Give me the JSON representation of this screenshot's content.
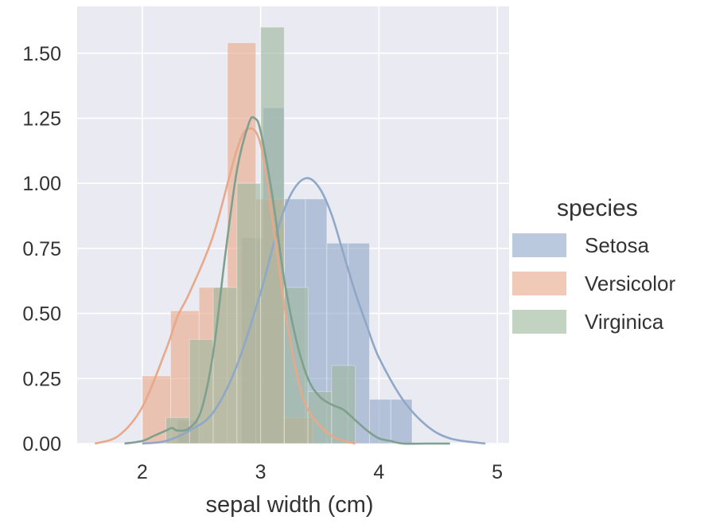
{
  "chart_data": {
    "type": "bar",
    "subtype": "histogram-with-kde",
    "xlabel": "sepal width (cm)",
    "ylabel": "",
    "xlim": [
      1.45,
      5.1
    ],
    "ylim": [
      0,
      1.68
    ],
    "x_ticks": [
      2,
      3,
      4,
      5
    ],
    "y_ticks": [
      0.0,
      0.25,
      0.5,
      0.75,
      1.0,
      1.25,
      1.5
    ],
    "x_tick_labels": [
      "2",
      "3",
      "4",
      "5"
    ],
    "y_tick_labels": [
      "0.00",
      "0.25",
      "0.50",
      "0.75",
      "1.00",
      "1.25",
      "1.50"
    ],
    "grid": true,
    "legend_position": "right",
    "legend_title": "species",
    "series": [
      {
        "name": "Setosa",
        "color": "#8fa8c8",
        "bins": [
          {
            "x0": 2.3,
            "x1": 2.48,
            "value": 0.09
          },
          {
            "x0": 2.66,
            "x1": 2.84,
            "value": 0.0
          },
          {
            "x0": 2.84,
            "x1": 3.02,
            "value": 0.79
          },
          {
            "x0": 3.02,
            "x1": 3.2,
            "value": 1.29
          },
          {
            "x0": 3.2,
            "x1": 3.38,
            "value": 0.94
          },
          {
            "x0": 3.38,
            "x1": 3.56,
            "value": 0.94
          },
          {
            "x0": 3.56,
            "x1": 3.74,
            "value": 0.77
          },
          {
            "x0": 3.74,
            "x1": 3.92,
            "value": 0.77
          },
          {
            "x0": 3.92,
            "x1": 4.1,
            "value": 0.17
          },
          {
            "x0": 4.1,
            "x1": 4.28,
            "value": 0.17
          }
        ],
        "kde": {
          "x": [
            2.0,
            2.2,
            2.4,
            2.6,
            2.8,
            3.0,
            3.1,
            3.2,
            3.3,
            3.4,
            3.5,
            3.6,
            3.7,
            3.8,
            3.9,
            4.0,
            4.2,
            4.4,
            4.6,
            4.9
          ],
          "y": [
            0.0,
            0.01,
            0.05,
            0.12,
            0.3,
            0.58,
            0.75,
            0.9,
            0.99,
            1.02,
            0.98,
            0.88,
            0.73,
            0.58,
            0.45,
            0.33,
            0.17,
            0.07,
            0.02,
            0.0
          ]
        }
      },
      {
        "name": "Versicolor",
        "color": "#e8a98a",
        "bins": [
          {
            "x0": 2.0,
            "x1": 2.24,
            "value": 0.26
          },
          {
            "x0": 2.24,
            "x1": 2.48,
            "value": 0.51
          },
          {
            "x0": 2.48,
            "x1": 2.72,
            "value": 0.6
          },
          {
            "x0": 2.72,
            "x1": 2.96,
            "value": 1.54
          },
          {
            "x0": 2.96,
            "x1": 3.2,
            "value": 0.94
          },
          {
            "x0": 3.2,
            "x1": 3.44,
            "value": 0.1
          }
        ],
        "kde": {
          "x": [
            1.6,
            1.8,
            2.0,
            2.2,
            2.3,
            2.4,
            2.6,
            2.8,
            2.9,
            3.0,
            3.1,
            3.2,
            3.3,
            3.4,
            3.6,
            3.8
          ],
          "y": [
            0.0,
            0.03,
            0.14,
            0.36,
            0.49,
            0.58,
            0.8,
            1.13,
            1.21,
            1.15,
            0.86,
            0.53,
            0.28,
            0.13,
            0.03,
            0.0
          ]
        }
      },
      {
        "name": "Virginica",
        "color": "#9cb89c",
        "bins": [
          {
            "x0": 2.2,
            "x1": 2.4,
            "value": 0.1
          },
          {
            "x0": 2.4,
            "x1": 2.6,
            "value": 0.4
          },
          {
            "x0": 2.6,
            "x1": 2.8,
            "value": 0.6
          },
          {
            "x0": 2.8,
            "x1": 3.0,
            "value": 1.0
          },
          {
            "x0": 3.0,
            "x1": 3.2,
            "value": 1.6
          },
          {
            "x0": 3.2,
            "x1": 3.4,
            "value": 0.6
          },
          {
            "x0": 3.4,
            "x1": 3.6,
            "value": 0.2
          },
          {
            "x0": 3.6,
            "x1": 3.8,
            "value": 0.3
          },
          {
            "x0": 3.8,
            "x1": 4.0,
            "value": 0.0
          }
        ],
        "kde": {
          "x": [
            1.85,
            2.0,
            2.1,
            2.2,
            2.25,
            2.3,
            2.4,
            2.5,
            2.6,
            2.7,
            2.8,
            2.9,
            2.95,
            3.0,
            3.1,
            3.2,
            3.3,
            3.4,
            3.5,
            3.6,
            3.7,
            3.8,
            3.9,
            4.0,
            4.1,
            4.2,
            4.4,
            4.6
          ],
          "y": [
            0.0,
            0.01,
            0.03,
            0.05,
            0.06,
            0.05,
            0.06,
            0.13,
            0.35,
            0.72,
            1.05,
            1.23,
            1.25,
            1.2,
            0.95,
            0.63,
            0.4,
            0.25,
            0.18,
            0.15,
            0.13,
            0.09,
            0.05,
            0.02,
            0.01,
            0.0,
            0.0,
            0.0
          ]
        }
      }
    ]
  }
}
